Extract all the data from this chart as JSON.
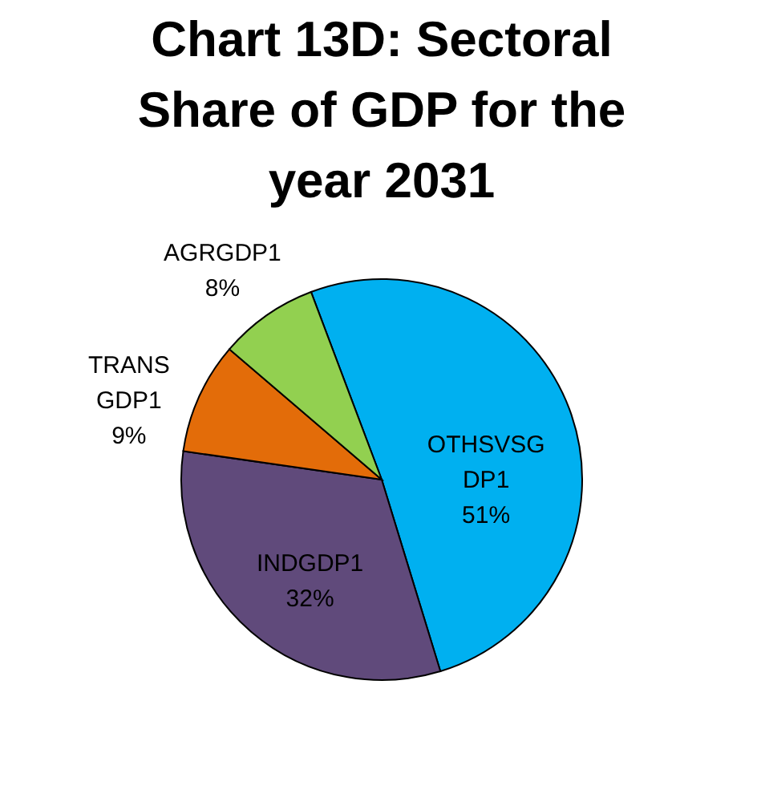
{
  "chart_data": {
    "type": "pie",
    "title": "Chart 13D: Sectoral Share of GDP for the year 2031",
    "categories": [
      "OTHSVSGDP1",
      "INDGDP1",
      "TRANS GDP1",
      "AGRGDP1"
    ],
    "values": [
      51,
      32,
      9,
      8
    ],
    "colors": [
      "#00b0f0",
      "#604a7b",
      "#e36c09",
      "#92d050"
    ],
    "value_labels": [
      "51%",
      "32%",
      "9%",
      "8%"
    ],
    "legend": false
  }
}
